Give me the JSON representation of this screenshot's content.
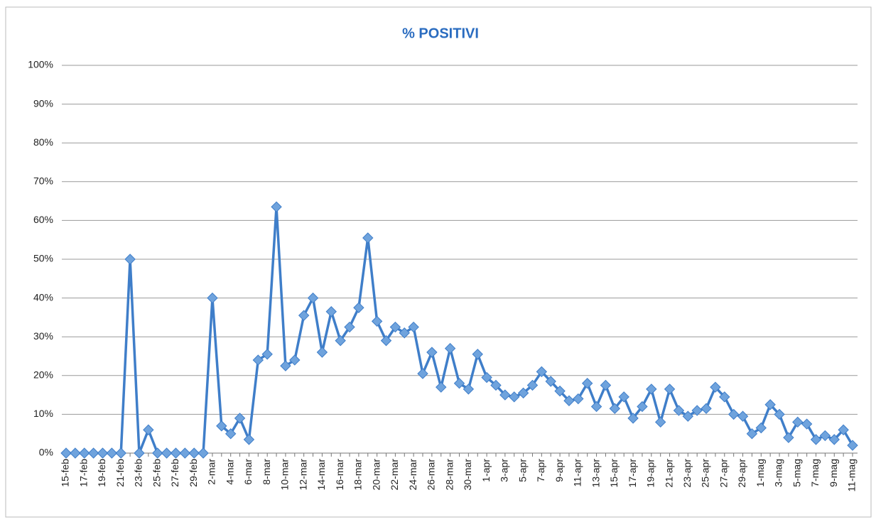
{
  "chart_data": {
    "type": "line",
    "title": "% POSITIVI",
    "categories": [
      "15-feb",
      null,
      "17-feb",
      null,
      "19-feb",
      null,
      "21-feb",
      null,
      "23-feb",
      null,
      "25-feb",
      null,
      "27-feb",
      null,
      "29-feb",
      null,
      "2-mar",
      null,
      "4-mar",
      null,
      "6-mar",
      null,
      "8-mar",
      null,
      "10-mar",
      null,
      "12-mar",
      null,
      "14-mar",
      null,
      "16-mar",
      null,
      "18-mar",
      null,
      "20-mar",
      null,
      "22-mar",
      null,
      "24-mar",
      null,
      "26-mar",
      null,
      "28-mar",
      null,
      "30-mar",
      null,
      "1-apr",
      null,
      "3-apr",
      null,
      "5-apr",
      null,
      "7-apr",
      null,
      "9-apr",
      null,
      "11-apr",
      null,
      "13-apr",
      null,
      "15-apr",
      null,
      "17-apr",
      null,
      "19-apr",
      null,
      "21-apr",
      null,
      "23-apr",
      null,
      "25-apr",
      null,
      "27-apr",
      null,
      "29-apr",
      null,
      "1-mag",
      null,
      "3-mag",
      null,
      "5-mag",
      null,
      "7-mag",
      null,
      "9-mag",
      null,
      "11-mag"
    ],
    "series": [
      {
        "name": "% POSITIVI",
        "color": "#3f7ec9",
        "marker_color": "#6fa3dd",
        "values": [
          0,
          0,
          0,
          0,
          0,
          0,
          0,
          50,
          0,
          6,
          0,
          0,
          0,
          0,
          0,
          0,
          40,
          7,
          5,
          9,
          3.5,
          24,
          25.5,
          63.5,
          22.5,
          24,
          35.5,
          40,
          26,
          36.5,
          29,
          32.5,
          37.5,
          55.5,
          34,
          29,
          32.5,
          31,
          32.5,
          20.5,
          26,
          17,
          27,
          18,
          16.5,
          25.5,
          19.5,
          17.5,
          15,
          14.5,
          15.5,
          17.5,
          21,
          18.5,
          16,
          13.5,
          14,
          18,
          12,
          17.5,
          11.5,
          14.5,
          9,
          12,
          16.5,
          8,
          16.5,
          11,
          9.5,
          11,
          11.5,
          17,
          14.5,
          10,
          9.5,
          5,
          6.5,
          12.5,
          10,
          4,
          8,
          7.5,
          3.5,
          4.5,
          3.5,
          6,
          2
        ]
      }
    ],
    "ylim": [
      0,
      100
    ],
    "yticks": [
      {
        "value": 0,
        "label": "0%"
      },
      {
        "value": 10,
        "label": "10%"
      },
      {
        "value": 20,
        "label": "20%"
      },
      {
        "value": 30,
        "label": "30%"
      },
      {
        "value": 40,
        "label": "40%"
      },
      {
        "value": 50,
        "label": "50%"
      },
      {
        "value": 60,
        "label": "60%"
      },
      {
        "value": 70,
        "label": "70%"
      },
      {
        "value": 80,
        "label": "80%"
      },
      {
        "value": 90,
        "label": "90%"
      },
      {
        "value": 100,
        "label": "100%"
      }
    ],
    "grid": true
  }
}
